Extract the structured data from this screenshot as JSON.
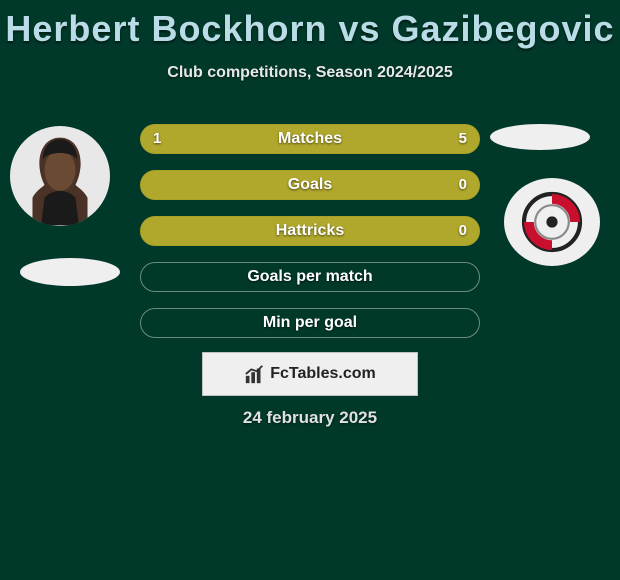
{
  "title": "Herbert Bockhorn vs Gazibegovic",
  "subtitle": "Club competitions, Season 2024/2025",
  "date": "24 february 2025",
  "brand": "FcTables.com",
  "colors": {
    "background": "#00392a",
    "title": "#b9dce6",
    "bar_fill": "#b0a82c",
    "bar_border": "#a8a028",
    "empty_border": "#6d8b7f",
    "avatar_bg": "#e8e8e8",
    "flag_bg": "#efefef",
    "brand_bg": "#efefef",
    "brand_border": "#c0c0c0"
  },
  "bars": [
    {
      "label": "Matches",
      "left_val": "1",
      "right_val": "5",
      "left_pct": 16.7,
      "right_pct": 83.3,
      "filled": true
    },
    {
      "label": "Goals",
      "left_val": "",
      "right_val": "0",
      "left_pct": 0,
      "right_pct": 0,
      "filled": true
    },
    {
      "label": "Hattricks",
      "left_val": "",
      "right_val": "0",
      "left_pct": 0,
      "right_pct": 0,
      "filled": true
    },
    {
      "label": "Goals per match",
      "left_val": "",
      "right_val": "",
      "left_pct": 0,
      "right_pct": 0,
      "filled": false
    },
    {
      "label": "Min per goal",
      "left_val": "",
      "right_val": "",
      "left_pct": 0,
      "right_pct": 0,
      "filled": false
    }
  ]
}
